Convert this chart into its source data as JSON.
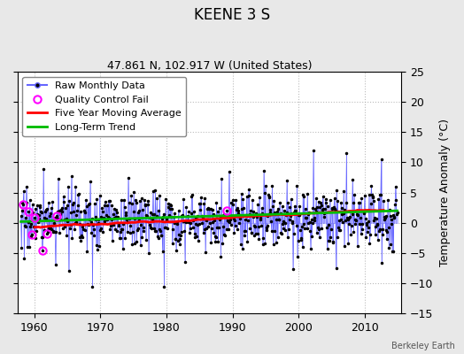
{
  "title": "KEENE 3 S",
  "subtitle": "47.861 N, 102.917 W (United States)",
  "ylabel": "Temperature Anomaly (°C)",
  "credit": "Berkeley Earth",
  "xlim": [
    1957.5,
    2015.5
  ],
  "ylim": [
    -15,
    25
  ],
  "yticks": [
    -15,
    -10,
    -5,
    0,
    5,
    10,
    15,
    20,
    25
  ],
  "xticks": [
    1960,
    1970,
    1980,
    1990,
    2000,
    2010
  ],
  "start_year": 1958,
  "end_year": 2014,
  "background_color": "#e8e8e8",
  "plot_bg_color": "#ffffff",
  "raw_line_color": "#6666ff",
  "raw_marker_color": "#000000",
  "moving_avg_color": "#ff0000",
  "trend_color": "#00bb00",
  "qc_fail_color": "#ff00ff",
  "title_fontsize": 12,
  "subtitle_fontsize": 9,
  "legend_fontsize": 8,
  "tick_fontsize": 9,
  "seed": 17
}
